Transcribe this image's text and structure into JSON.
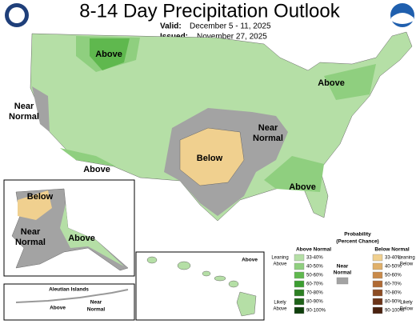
{
  "header": {
    "title": "8-14 Day Precipitation Outlook",
    "valid_label": "Valid:",
    "valid": "December 5 - 11, 2025",
    "issued_label": "Issued:",
    "issued": "November 27, 2025"
  },
  "map_labels": {
    "montana": "Above",
    "west_coast": [
      "Near",
      "Normal"
    ],
    "southwest": "Above",
    "southern_plains": "Below",
    "mississippi": [
      "Near",
      "Normal"
    ],
    "southeast": "Above",
    "northeast": "Above"
  },
  "alaska": {
    "north": "Below",
    "west": [
      "Near",
      "Normal"
    ],
    "southeast": "Above"
  },
  "aleutians": {
    "title": "Aleutian Islands",
    "west": "Above",
    "east": [
      "Near",
      "Normal"
    ]
  },
  "hawaii": {
    "label": "Above"
  },
  "legend": {
    "title": "Probability",
    "subtitle": "(Percent Chance)",
    "above": {
      "title": "Above Normal",
      "leaning": [
        "Leaning",
        "Above"
      ],
      "likely": [
        "Likely",
        "Above"
      ],
      "items": [
        {
          "label": "33-40%",
          "color": "#b5dfa6"
        },
        {
          "label": "40-50%",
          "color": "#8fcf7f"
        },
        {
          "label": "50-60%",
          "color": "#5fb84e"
        },
        {
          "label": "60-70%",
          "color": "#3c9e31"
        },
        {
          "label": "70-80%",
          "color": "#2c7f22"
        },
        {
          "label": "80-90%",
          "color": "#1e6118"
        },
        {
          "label": "90-100%",
          "color": "#0f3f0c"
        }
      ]
    },
    "below": {
      "title": "Below Normal",
      "leaning": [
        "Leaning",
        "Below"
      ],
      "likely": [
        "Likely",
        "Below"
      ],
      "items": [
        {
          "label": "33-40%",
          "color": "#f0d08f"
        },
        {
          "label": "40-50%",
          "color": "#e0b06a"
        },
        {
          "label": "50-60%",
          "color": "#c98a4a"
        },
        {
          "label": "60-70%",
          "color": "#b06a34"
        },
        {
          "label": "70-80%",
          "color": "#8c4c23"
        },
        {
          "label": "80-90%",
          "color": "#6b3418"
        },
        {
          "label": "90-100%",
          "color": "#4a220f"
        }
      ]
    },
    "near": {
      "title": [
        "Near",
        "Normal"
      ],
      "color": "#a3a3a3"
    }
  }
}
